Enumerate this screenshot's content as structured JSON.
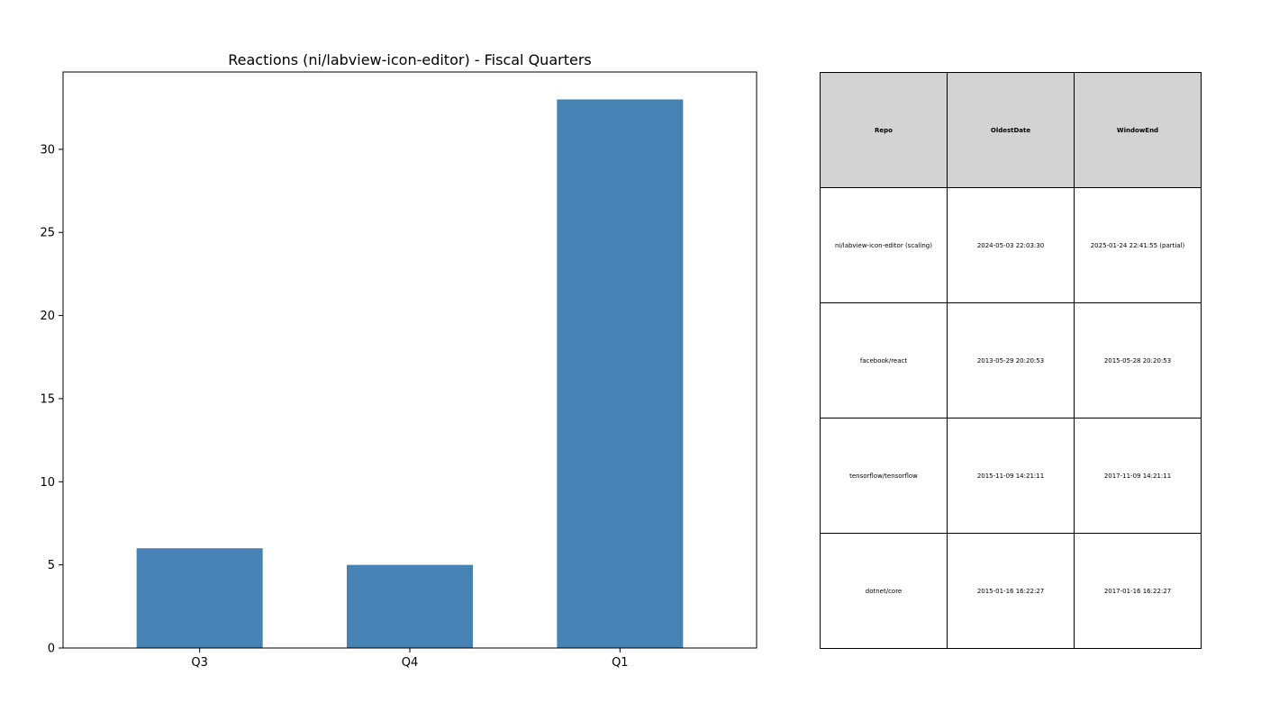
{
  "chart_data": [
    {
      "type": "bar",
      "title": "Reactions (ni/labview-icon-editor) - Fiscal Quarters",
      "categories": [
        "Q3",
        "Q4",
        "Q1"
      ],
      "values": [
        6,
        5,
        33
      ],
      "xlabel": "",
      "ylabel": "",
      "ylim": [
        0,
        34.65
      ],
      "yticks": [
        0,
        5,
        10,
        15,
        20,
        25,
        30
      ],
      "grid": false,
      "bar_color": "#4682b4"
    },
    {
      "type": "table",
      "columns": [
        "Repo",
        "OldestDate",
        "WindowEnd"
      ],
      "rows": [
        [
          "ni/labview-icon-editor (scaling)",
          "2024-05-03 22:03:30",
          "2025-01-24 22:41:55 (partial)"
        ],
        [
          "facebook/react",
          "2013-05-29 20:20:53",
          "2015-05-28 20:20:53"
        ],
        [
          "tensorflow/tensorflow",
          "2015-11-09 14:21:11",
          "2017-11-09 14:21:11"
        ],
        [
          "dotnet/core",
          "2015-01-16 16:22:27",
          "2017-01-16 16:22:27"
        ]
      ],
      "header_color": "#d3d3d3"
    }
  ]
}
